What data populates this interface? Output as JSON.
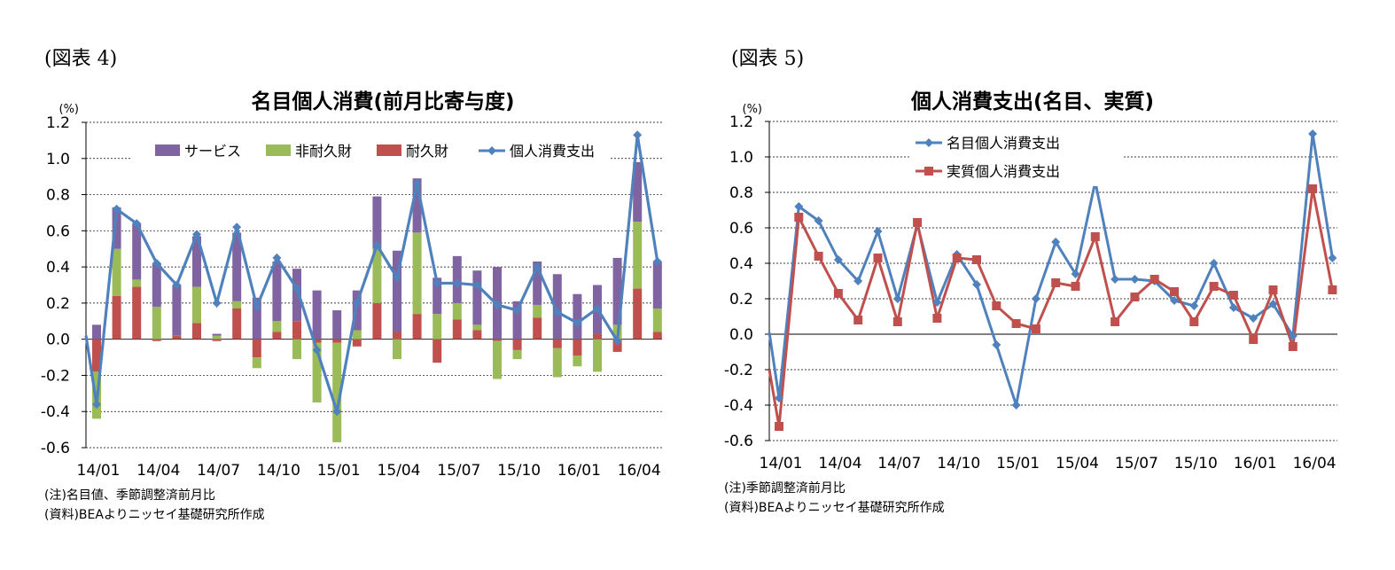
{
  "charts": [
    {
      "fig_label": "(図表 4)",
      "notes": [
        "(注)名目値、季節調整済前月比",
        "(資料)BEAよりニッセイ基礎研究所作成"
      ]
    },
    {
      "fig_label": "(図表 5)",
      "notes": [
        "(注)季節調整済前月比",
        "(資料)BEAよりニッセイ基礎研究所作成"
      ]
    }
  ],
  "chart_data": [
    {
      "type": "bar",
      "stacked": true,
      "title": "名目個人消費(前月比寄与度)",
      "ylabel": "(%)",
      "ylim": [
        -0.6,
        1.2
      ],
      "yticks": [
        "-0.6",
        "-0.4",
        "-0.2",
        "0.0",
        "0.2",
        "0.4",
        "0.6",
        "0.8",
        "1.0",
        "1.2"
      ],
      "xtick_labels": [
        "14/01",
        "14/04",
        "14/07",
        "14/10",
        "15/01",
        "15/04",
        "15/07",
        "15/10",
        "16/01",
        "16/04"
      ],
      "categories": [
        "14/01",
        "14/02",
        "14/03",
        "14/04",
        "14/05",
        "14/06",
        "14/07",
        "14/08",
        "14/09",
        "14/10",
        "14/11",
        "14/12",
        "15/01",
        "15/02",
        "15/03",
        "15/04",
        "15/05",
        "15/06",
        "15/07",
        "15/08",
        "15/09",
        "15/10",
        "15/11",
        "15/12",
        "16/01",
        "16/02",
        "16/03",
        "16/04",
        "16/05"
      ],
      "legend_position": "top",
      "series": [
        {
          "name": "サービス",
          "kind": "bar",
          "color": "#8064a2",
          "values": [
            0.08,
            0.23,
            0.31,
            0.24,
            0.28,
            0.28,
            0.01,
            0.38,
            0.23,
            0.33,
            0.29,
            0.27,
            0.16,
            0.22,
            0.29,
            0.45,
            0.3,
            0.2,
            0.26,
            0.3,
            0.4,
            0.21,
            0.24,
            0.36,
            0.25,
            0.27,
            0.37,
            0.33,
            0.26
          ]
        },
        {
          "name": "非耐久財",
          "kind": "bar",
          "color": "#9bbb59",
          "values": [
            -0.26,
            0.26,
            0.04,
            0.18,
            0.0,
            0.2,
            0.02,
            0.04,
            -0.06,
            0.06,
            -0.11,
            -0.33,
            -0.55,
            0.05,
            0.3,
            -0.11,
            0.45,
            0.14,
            0.09,
            0.03,
            -0.21,
            -0.05,
            0.07,
            -0.16,
            -0.06,
            -0.18,
            0.08,
            0.37,
            0.13
          ]
        },
        {
          "name": "耐久財",
          "kind": "bar",
          "color": "#c0504d",
          "values": [
            -0.18,
            0.24,
            0.29,
            -0.01,
            0.02,
            0.09,
            -0.01,
            0.17,
            -0.1,
            0.04,
            0.1,
            -0.02,
            -0.02,
            -0.04,
            0.2,
            0.04,
            0.14,
            -0.13,
            0.11,
            0.05,
            -0.01,
            -0.06,
            0.12,
            -0.05,
            -0.09,
            0.03,
            -0.07,
            0.28,
            0.04
          ]
        },
        {
          "name": "個人消費支出",
          "kind": "line",
          "color": "#4f81bd",
          "values": [
            -0.36,
            0.72,
            0.64,
            0.42,
            0.3,
            0.58,
            0.2,
            0.62,
            0.18,
            0.45,
            0.28,
            -0.06,
            -0.4,
            0.2,
            0.52,
            0.34,
            0.86,
            0.31,
            0.31,
            0.3,
            0.19,
            0.16,
            0.4,
            0.15,
            0.09,
            0.17,
            -0.01,
            1.13,
            0.43
          ]
        }
      ]
    },
    {
      "type": "line",
      "title": "個人消費支出(名目、実質)",
      "ylabel": "(%)",
      "ylim": [
        -0.6,
        1.2
      ],
      "yticks": [
        "-0.6",
        "-0.4",
        "-0.2",
        "0.0",
        "0.2",
        "0.4",
        "0.6",
        "0.8",
        "1.0",
        "1.2"
      ],
      "xtick_labels": [
        "14/01",
        "14/04",
        "14/07",
        "14/10",
        "15/01",
        "15/04",
        "15/07",
        "15/10",
        "16/01",
        "16/04"
      ],
      "categories": [
        "14/01",
        "14/02",
        "14/03",
        "14/04",
        "14/05",
        "14/06",
        "14/07",
        "14/08",
        "14/09",
        "14/10",
        "14/11",
        "14/12",
        "15/01",
        "15/02",
        "15/03",
        "15/04",
        "15/05",
        "15/06",
        "15/07",
        "15/08",
        "15/09",
        "15/10",
        "15/11",
        "15/12",
        "16/01",
        "16/02",
        "16/03",
        "16/04",
        "16/05"
      ],
      "legend_position": "top-left",
      "series": [
        {
          "name": "名目個人消費支出",
          "color": "#4f81bd",
          "marker": "diamond",
          "values": [
            -0.36,
            0.72,
            0.64,
            0.42,
            0.3,
            0.58,
            0.2,
            0.62,
            0.18,
            0.45,
            0.28,
            -0.06,
            -0.4,
            0.2,
            0.52,
            0.34,
            0.86,
            0.31,
            0.31,
            0.3,
            0.19,
            0.16,
            0.4,
            0.15,
            0.09,
            0.17,
            -0.01,
            1.13,
            0.43
          ]
        },
        {
          "name": "実質個人消費支出",
          "color": "#c0504d",
          "marker": "square",
          "values": [
            -0.52,
            0.66,
            0.44,
            0.23,
            0.08,
            0.43,
            0.07,
            0.63,
            0.09,
            0.43,
            0.42,
            0.16,
            0.06,
            0.03,
            0.29,
            0.27,
            0.55,
            0.07,
            0.21,
            0.31,
            0.24,
            0.07,
            0.27,
            0.22,
            -0.03,
            0.25,
            -0.07,
            0.82,
            0.25
          ]
        }
      ]
    }
  ]
}
